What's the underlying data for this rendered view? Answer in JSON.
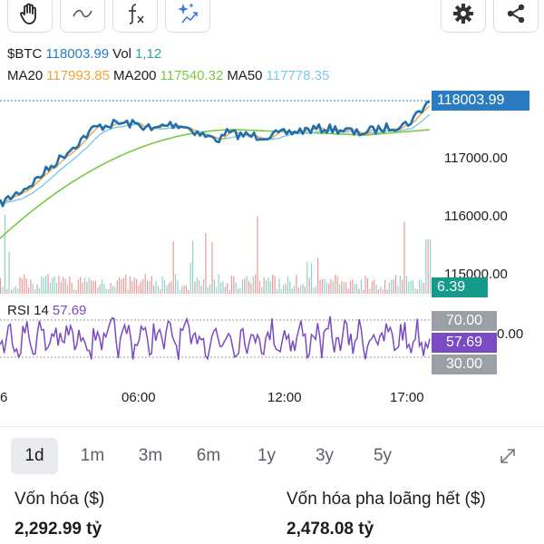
{
  "toolbar": {
    "left_icons": [
      "hand-icon",
      "squiggle-icon",
      "function-icon",
      "sparkle-chart-icon"
    ],
    "right_icons": [
      "gear-icon",
      "share-icon"
    ]
  },
  "header": {
    "symbol": "$BTC",
    "price": "118003.99",
    "vol_label": "Vol",
    "vol_value": "1,12",
    "ma20_label": "MA20",
    "ma20_value": "117993.85",
    "ma200_label": "MA200",
    "ma200_value": "117540.32",
    "ma50_label": "MA50",
    "ma50_value": "117778.35"
  },
  "price_axis": {
    "current_price": "118003.99",
    "ticks": [
      "117000.00",
      "116000.00",
      "115000.00"
    ],
    "volume_tag": "6.39"
  },
  "rsi": {
    "label": "RSI 14",
    "value": "57.69",
    "upper": "70.00",
    "lower": "30.00",
    "partial_axis_label": "0.00"
  },
  "time_axis": [
    "6",
    "06:00",
    "12:00",
    "17:00"
  ],
  "ranges": [
    {
      "label": "1d",
      "active": true
    },
    {
      "label": "1m",
      "active": false
    },
    {
      "label": "3m",
      "active": false
    },
    {
      "label": "6m",
      "active": false
    },
    {
      "label": "1y",
      "active": false
    },
    {
      "label": "3y",
      "active": false
    },
    {
      "label": "5y",
      "active": false
    }
  ],
  "expand_icon": "expand-icon",
  "stats": {
    "market_cap_label": "Vốn hóa ($)",
    "market_cap_value": "2,292.99 tỷ",
    "diluted_cap_label": "Vốn hóa pha loãng hết ($)",
    "diluted_cap_value": "2,478.08 tỷ"
  },
  "colors": {
    "price_line": "#1e6fb0",
    "ma20": "#f0a43a",
    "ma50": "#7ec8ec",
    "ma200": "#7ac943",
    "rsi": "#7a4bc2",
    "price_tag": "#2a7bbf",
    "volume_tag": "#159a8c",
    "rsi_band_tag": "#9aa0a6"
  }
}
